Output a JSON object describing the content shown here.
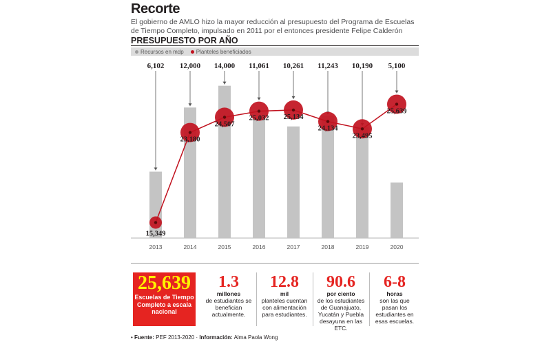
{
  "header": {
    "title": "Recorte",
    "subtitle": "El gobierno de AMLO hizo la mayor reducción al presupuesto del Programa de Escuelas de Tiempo Completo, impulsado en 2011 por el entonces presidente Felipe Calderón",
    "section": "PRESUPUESTO POR AÑO"
  },
  "legend": [
    {
      "label": "Recursos en mdp",
      "color": "#9d9d9d"
    },
    {
      "label": "Planteles beneficiados",
      "color": "#c1121f"
    }
  ],
  "colors": {
    "accent": "#e52421",
    "bar": "#c4c4c4",
    "marker": "#c1121f",
    "highlight": "#fff200"
  },
  "chart_data": {
    "type": "bar",
    "title": "PRESUPUESTO POR AÑO",
    "categories": [
      "2013",
      "2014",
      "2015",
      "2016",
      "2017",
      "2018",
      "2019",
      "2020"
    ],
    "bar_labels": [
      "6,102",
      "12,000",
      "14,000",
      "11,061",
      "10,261",
      "11,243",
      "10,190",
      "5,100"
    ],
    "series": [
      {
        "name": "Recursos en mdp",
        "type": "bar",
        "values": [
          6102,
          12000,
          14000,
          11061,
          10261,
          11243,
          10190,
          5100
        ]
      },
      {
        "name": "Planteles beneficiados",
        "type": "line",
        "values": [
          15349,
          23180,
          24507,
          25032,
          25134,
          24134,
          23495,
          25639
        ],
        "labels": [
          "15,349",
          "23,180",
          "24,507",
          "25,032",
          "25,134",
          "24,134",
          "23,495",
          "25,639"
        ]
      }
    ],
    "ylim_bars": [
      0,
      14800
    ],
    "ylim_line": [
      14000,
      28000
    ],
    "grid": false,
    "legend": "top-left"
  },
  "stats": {
    "highlight": {
      "value": "25,639",
      "text": "Escuelas de Tiempo Completo a escala nacional"
    },
    "items": [
      {
        "value": "1.3",
        "unit": "millones",
        "desc": "de estudiantes se benefician actualmente."
      },
      {
        "value": "12.8",
        "unit": "mil",
        "desc": "planteles cuentan con alimentación para estudiantes."
      },
      {
        "value": "90.6",
        "unit": "por ciento",
        "desc": "de los estudiantes de Guanajuato, Yucatán y Puebla desayuna en las ETC."
      },
      {
        "value": "6-8",
        "unit": "horas",
        "desc": "son las que pasan los estudiantes en esas escuelas."
      }
    ]
  },
  "footer": {
    "source_label": "Fuente:",
    "source": "PEF 2013-2020",
    "info_label": "Información:",
    "info": "Alma Paola Wong"
  }
}
